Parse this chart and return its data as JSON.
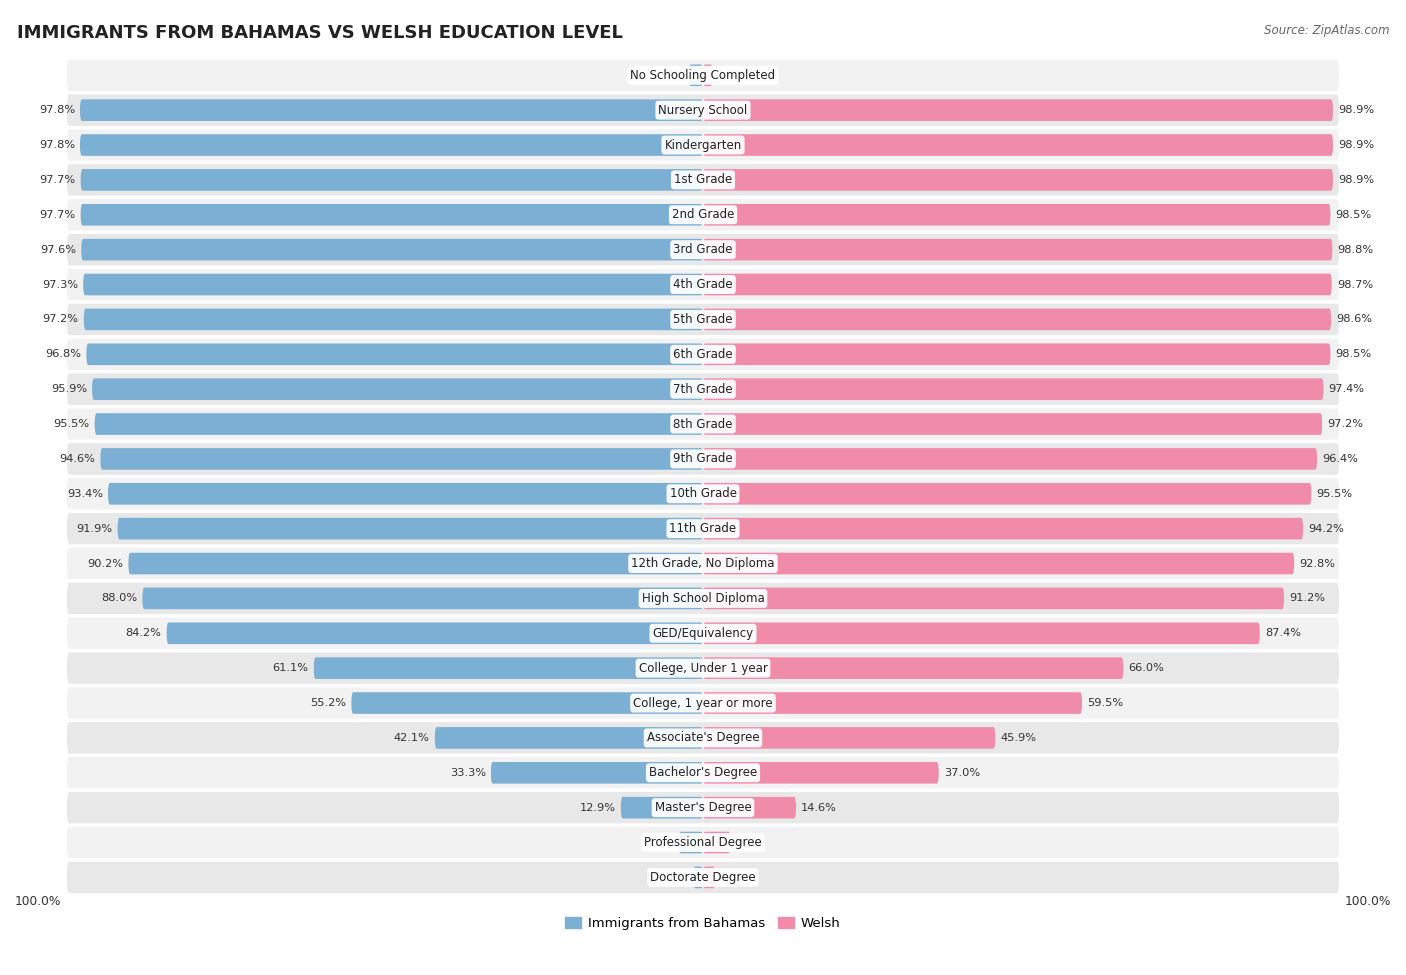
{
  "title": "IMMIGRANTS FROM BAHAMAS VS WELSH EDUCATION LEVEL",
  "source": "Source: ZipAtlas.com",
  "categories": [
    "No Schooling Completed",
    "Nursery School",
    "Kindergarten",
    "1st Grade",
    "2nd Grade",
    "3rd Grade",
    "4th Grade",
    "5th Grade",
    "6th Grade",
    "7th Grade",
    "8th Grade",
    "9th Grade",
    "10th Grade",
    "11th Grade",
    "12th Grade, No Diploma",
    "High School Diploma",
    "GED/Equivalency",
    "College, Under 1 year",
    "College, 1 year or more",
    "Associate's Degree",
    "Bachelor's Degree",
    "Master's Degree",
    "Professional Degree",
    "Doctorate Degree"
  ],
  "bahamas": [
    2.2,
    97.8,
    97.8,
    97.7,
    97.7,
    97.6,
    97.3,
    97.2,
    96.8,
    95.9,
    95.5,
    94.6,
    93.4,
    91.9,
    90.2,
    88.0,
    84.2,
    61.1,
    55.2,
    42.1,
    33.3,
    12.9,
    3.8,
    1.5
  ],
  "welsh": [
    1.5,
    98.9,
    98.9,
    98.9,
    98.5,
    98.8,
    98.7,
    98.6,
    98.5,
    97.4,
    97.2,
    96.4,
    95.5,
    94.2,
    92.8,
    91.2,
    87.4,
    66.0,
    59.5,
    45.9,
    37.0,
    14.6,
    4.3,
    1.9
  ],
  "bahamas_color": "#7BAFD4",
  "welsh_color": "#F08BAA",
  "row_color_odd": "#f2f2f2",
  "row_color_even": "#e8e8e8",
  "title_fontsize": 13,
  "label_fontsize": 8.5,
  "value_fontsize": 8.2,
  "legend_fontsize": 9.5
}
